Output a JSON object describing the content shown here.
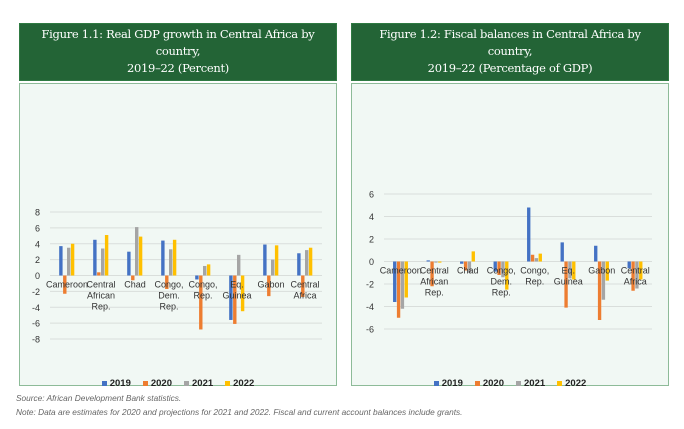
{
  "colors": {
    "2019": "#4472c4",
    "2020": "#ed7d31",
    "2021": "#a5a5a5",
    "2022": "#ffc000",
    "title_bg": "#236436"
  },
  "series_names": [
    "2019",
    "2020",
    "2021",
    "2022"
  ],
  "chart_data": [
    {
      "type": "bar",
      "title": "Figure 1.1: Real GDP growth in Central Africa by country, 2019–22 (Percent)",
      "title_lines": [
        "Figure 1.1: Real GDP growth in Central Africa by country,",
        "2019–22 (Percent)"
      ],
      "xlabel": "",
      "ylabel": "",
      "ylim": [
        -8,
        8
      ],
      "yticks": [
        8,
        6,
        4,
        2,
        0,
        -2,
        -4,
        -6,
        -8
      ],
      "grid": true,
      "legend": "bottom",
      "categories": [
        [
          "Cameroon"
        ],
        [
          "Central",
          "African",
          "Rep."
        ],
        [
          "Chad"
        ],
        [
          "Congo,",
          "Dem.",
          "Rep."
        ],
        [
          "Congo,",
          "Rep."
        ],
        [
          "Eq.",
          "Guinea"
        ],
        [
          "Gabon"
        ],
        [
          "Central",
          "Africa"
        ]
      ],
      "series": [
        {
          "name": "2019",
          "values": [
            3.7,
            4.5,
            3.0,
            4.4,
            -0.5,
            -5.6,
            3.9,
            2.8
          ]
        },
        {
          "name": "2020",
          "values": [
            -2.3,
            0.4,
            -0.6,
            -1.7,
            -6.8,
            -6.1,
            -2.6,
            -2.7
          ]
        },
        {
          "name": "2021",
          "values": [
            3.5,
            3.4,
            6.1,
            3.3,
            1.2,
            2.6,
            2.0,
            3.2
          ]
        },
        {
          "name": "2022",
          "values": [
            4.0,
            5.1,
            4.9,
            4.5,
            1.4,
            -4.5,
            3.8,
            3.5
          ]
        }
      ]
    },
    {
      "type": "bar",
      "title": "Figure 1.2: Fiscal balances in Central Africa by country, 2019–22 (Percentage of GDP)",
      "title_lines": [
        "Figure 1.2: Fiscal balances in Central Africa by country,",
        "2019–22 (Percentage of GDP)"
      ],
      "xlabel": "",
      "ylabel": "",
      "ylim": [
        -6,
        6
      ],
      "yticks": [
        6,
        4,
        2,
        0,
        -2,
        -4,
        -6
      ],
      "grid": true,
      "legend": "bottom",
      "categories": [
        [
          "Cameroon"
        ],
        [
          "Central",
          "African",
          "Rep."
        ],
        [
          "Chad"
        ],
        [
          "Congo,",
          "Dem.",
          "Rep."
        ],
        [
          "Congo,",
          "Rep."
        ],
        [
          "Eq.",
          "Guinea"
        ],
        [
          "Gabon"
        ],
        [
          "Central",
          "Africa"
        ]
      ],
      "series": [
        {
          "name": "2019",
          "values": [
            -3.6,
            0.1,
            -0.2,
            -0.9,
            4.8,
            1.7,
            1.4,
            -0.6
          ]
        },
        {
          "name": "2020",
          "values": [
            -5.0,
            -2.2,
            -0.8,
            -1.2,
            0.6,
            -4.1,
            -5.2,
            -2.6
          ]
        },
        {
          "name": "2021",
          "values": [
            -4.2,
            -0.1,
            -1.0,
            -1.4,
            0.3,
            -1.5,
            -3.4,
            -2.4
          ]
        },
        {
          "name": "2022",
          "values": [
            -3.2,
            -0.1,
            0.9,
            -2.5,
            0.7,
            -1.6,
            -1.7,
            -1.6
          ]
        }
      ]
    }
  ],
  "footer": {
    "source": "Source: African Development Bank statistics.",
    "note": "Note: Data are estimates for 2020 and projections for 2021 and 2022. Fiscal and current account balances include grants."
  }
}
